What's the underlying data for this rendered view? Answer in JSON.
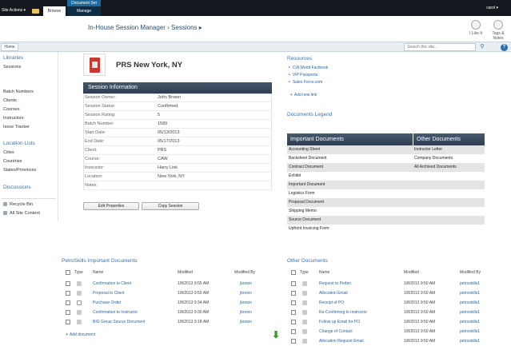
{
  "ribbon": {
    "site_actions": "Site Actions ▾",
    "tab_browse": "Browse",
    "docset_label": "Document Set",
    "tab_manage": "Manage",
    "user": "carol ▾"
  },
  "header": {
    "breadcrumb": "In-House Session Manager › Sessions ▸",
    "like_label": "I Like It",
    "tags_label": "Tags & Notes"
  },
  "topnav": {
    "home": "Home",
    "search_placeholder": "Search this site..."
  },
  "leftnav": {
    "libraries": "Libraries",
    "sessions": "Sessions",
    "lists": [
      "Batch Numbers",
      "Clients",
      "Courses",
      "Instructors",
      "Issue Tracker"
    ],
    "location_lists": "Location Lists",
    "locations": [
      "Cities",
      "Countries",
      "States/Provinces"
    ],
    "discussions": "Discussions",
    "recycle_bin": "Recycle Bin",
    "all_content": "All Site Content"
  },
  "session": {
    "title": "PRS New York, NY",
    "info_heading": "Session Information",
    "fields": [
      {
        "label": "Session Owner:",
        "value": "John Brown"
      },
      {
        "label": "Session Status:",
        "value": "Confirmed"
      },
      {
        "label": "Session Rating:",
        "value": "5"
      },
      {
        "label": "Batch Number:",
        "value": "1589"
      },
      {
        "label": "Start Date:",
        "value": "05/13/2013"
      },
      {
        "label": "End Date:",
        "value": "05/17/2013"
      },
      {
        "label": "Client:",
        "value": "PRS"
      },
      {
        "label": "Course:",
        "value": "CAW"
      },
      {
        "label": "Instructor:",
        "value": "Harry Link"
      },
      {
        "label": "Location:",
        "value": "New York, NY"
      },
      {
        "label": "Notes:",
        "value": ""
      }
    ],
    "edit_button": "Edit Properties",
    "copy_button": "Copy Session"
  },
  "resources": {
    "title": "Resources",
    "links": [
      "CIA World Factbook",
      "VIP Passports",
      "Sales Force.com"
    ],
    "add_link": "Add new link"
  },
  "legend": {
    "title": "Documents Legend",
    "col1": "Important Documents",
    "col2": "Other Documents",
    "rows": [
      [
        "Accounting Sheet",
        "Instructor Letter"
      ],
      [
        "Backsheet Document",
        "Company Documents"
      ],
      [
        "Contract Document",
        "All Archived Documents"
      ],
      [
        "Exhibit",
        ""
      ],
      [
        "Important Document",
        ""
      ],
      [
        "Logistics Form",
        ""
      ],
      [
        "Proposal Document",
        ""
      ],
      [
        "Shipping Memo",
        ""
      ],
      [
        "Source Document",
        ""
      ],
      [
        "Upfront Invoicing Form",
        ""
      ]
    ]
  },
  "important_docs": {
    "title": "PetroSkills Important Documents",
    "headers": {
      "type": "Type",
      "name": "Name",
      "modified": "Modified",
      "by": "Modified By"
    },
    "rows": [
      {
        "icon": "pdf",
        "name": "Confirmation to Client",
        "modified": "1/8/2013 9:55 AM",
        "by": "jbrown"
      },
      {
        "icon": "pdf",
        "name": "Proposal to Client",
        "modified": "1/8/2013 9:50 AM",
        "by": "jbrown"
      },
      {
        "icon": "doc",
        "name": "Purchase Order",
        "modified": "1/8/2013 9:34 AM",
        "by": "jbrown"
      },
      {
        "icon": "pdf",
        "name": "Confirmation to Instructor",
        "modified": "1/8/2013 9:30 AM",
        "by": "jbrown"
      },
      {
        "icon": "pdf",
        "name": "BIG Group Source Document",
        "modified": "1/8/2013 9:18 AM",
        "by": "jbrown"
      }
    ],
    "add_doc": "Add document"
  },
  "other_docs": {
    "title": "Other Documents",
    "headers": {
      "type": "Type",
      "name": "Name",
      "modified": "Modified",
      "by": "Modified By"
    },
    "rows": [
      {
        "icon": "pdf",
        "name": "Request to Peden",
        "modified": "1/8/2013 9:50 AM",
        "by": "petroskills1"
      },
      {
        "icon": "pdf",
        "name": "Allocation Email",
        "modified": "1/8/2013 9:50 AM",
        "by": "petroskills1"
      },
      {
        "icon": "pdf",
        "name": "Receipt of PO",
        "modified": "1/8/2013 9:50 AM",
        "by": "petroskills1"
      },
      {
        "icon": "pdf",
        "name": "Re-Confirming to Instructor",
        "modified": "1/8/2013 9:50 AM",
        "by": "petroskills1"
      },
      {
        "icon": "pdf",
        "name": "Follow up Email for PO",
        "modified": "1/8/2013 9:50 AM",
        "by": "petroskills1"
      },
      {
        "icon": "pdf",
        "name": "Change of Contact",
        "modified": "1/8/2013 9:50 AM",
        "by": "petroskills1"
      },
      {
        "icon": "pdf",
        "name": "Allocation Request Email",
        "modified": "1/8/2013 9:50 AM",
        "by": "petroskills1"
      }
    ]
  }
}
